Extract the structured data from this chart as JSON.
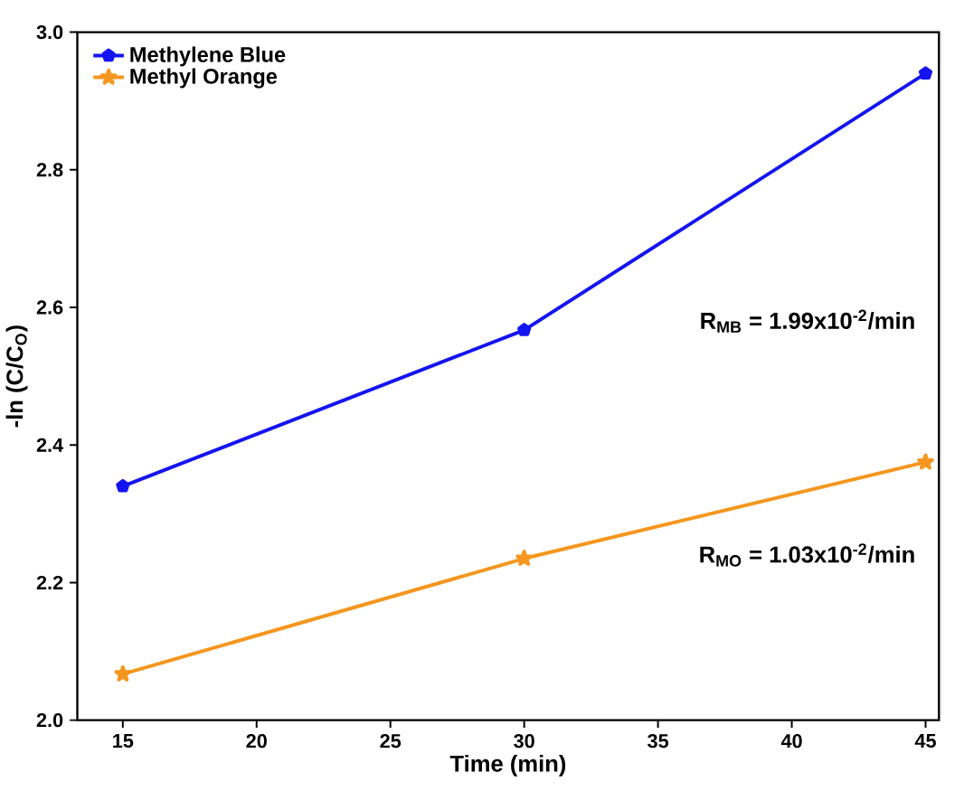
{
  "chart_data": {
    "type": "line",
    "xlabel": "Time (min)",
    "ylabel": "-ln (C/C$_{O}$)",
    "x": [
      15,
      30,
      45
    ],
    "series": [
      {
        "name": "Methylene Blue",
        "color": "#1414f0",
        "values": [
          2.34,
          2.567,
          2.94
        ],
        "marker": "circle"
      },
      {
        "name": "Methyl Orange",
        "color": "#f5961e",
        "values": [
          2.067,
          2.235,
          2.375
        ],
        "marker": "star"
      }
    ],
    "xlim": [
      13.3,
      45.5
    ],
    "ylim": [
      2.0,
      3.0
    ],
    "xticks": [
      15,
      20,
      25,
      30,
      35,
      40,
      45
    ],
    "yticks": [
      {
        "value": 2.0,
        "label": "2.0"
      },
      {
        "value": 2.2,
        "label": "2.2"
      },
      {
        "value": 2.4,
        "label": "2.4"
      },
      {
        "value": 2.6,
        "label": "2.6"
      },
      {
        "value": 2.8,
        "label": "2.8"
      },
      {
        "value": 3.0,
        "label": "3.0"
      }
    ],
    "legend": "top left",
    "grid": false,
    "annotations": [
      "R$_{MB}$ = 1.99x10$^{-2}$/min",
      "R$_{MO}$ = 1.03x10$^{-2}$/min"
    ]
  }
}
